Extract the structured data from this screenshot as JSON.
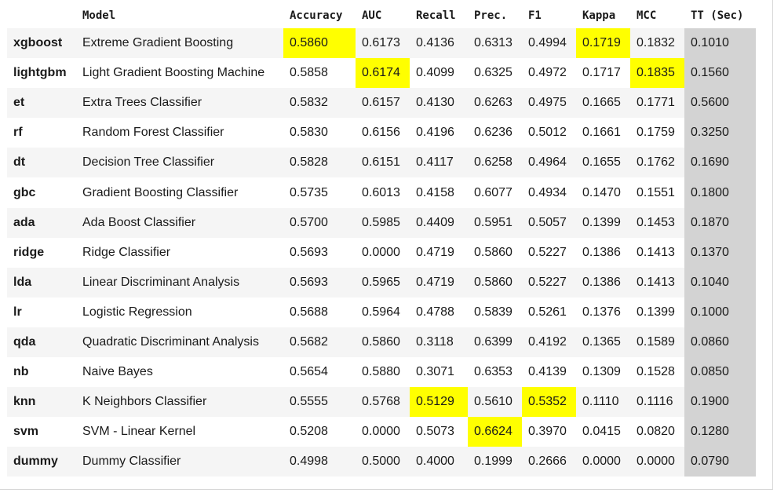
{
  "table": {
    "headers": [
      "",
      "Model",
      "Accuracy",
      "AUC",
      "Recall",
      "Prec.",
      "F1",
      "Kappa",
      "MCC",
      "TT (Sec)"
    ],
    "rows": [
      {
        "id": "xgboost",
        "model": "Extreme Gradient Boosting",
        "accuracy": "0.5860",
        "auc": "0.6173",
        "recall": "0.4136",
        "prec": "0.6313",
        "f1": "0.4994",
        "kappa": "0.1719",
        "mcc": "0.1832",
        "tt": "0.1010"
      },
      {
        "id": "lightgbm",
        "model": "Light Gradient Boosting Machine",
        "accuracy": "0.5858",
        "auc": "0.6174",
        "recall": "0.4099",
        "prec": "0.6325",
        "f1": "0.4972",
        "kappa": "0.1717",
        "mcc": "0.1835",
        "tt": "0.1560"
      },
      {
        "id": "et",
        "model": "Extra Trees Classifier",
        "accuracy": "0.5832",
        "auc": "0.6157",
        "recall": "0.4130",
        "prec": "0.6263",
        "f1": "0.4975",
        "kappa": "0.1665",
        "mcc": "0.1771",
        "tt": "0.5600"
      },
      {
        "id": "rf",
        "model": "Random Forest Classifier",
        "accuracy": "0.5830",
        "auc": "0.6156",
        "recall": "0.4196",
        "prec": "0.6236",
        "f1": "0.5012",
        "kappa": "0.1661",
        "mcc": "0.1759",
        "tt": "0.3250"
      },
      {
        "id": "dt",
        "model": "Decision Tree Classifier",
        "accuracy": "0.5828",
        "auc": "0.6151",
        "recall": "0.4117",
        "prec": "0.6258",
        "f1": "0.4964",
        "kappa": "0.1655",
        "mcc": "0.1762",
        "tt": "0.1690"
      },
      {
        "id": "gbc",
        "model": "Gradient Boosting Classifier",
        "accuracy": "0.5735",
        "auc": "0.6013",
        "recall": "0.4158",
        "prec": "0.6077",
        "f1": "0.4934",
        "kappa": "0.1470",
        "mcc": "0.1551",
        "tt": "0.1800"
      },
      {
        "id": "ada",
        "model": "Ada Boost Classifier",
        "accuracy": "0.5700",
        "auc": "0.5985",
        "recall": "0.4409",
        "prec": "0.5951",
        "f1": "0.5057",
        "kappa": "0.1399",
        "mcc": "0.1453",
        "tt": "0.1870"
      },
      {
        "id": "ridge",
        "model": "Ridge Classifier",
        "accuracy": "0.5693",
        "auc": "0.0000",
        "recall": "0.4719",
        "prec": "0.5860",
        "f1": "0.5227",
        "kappa": "0.1386",
        "mcc": "0.1413",
        "tt": "0.1370"
      },
      {
        "id": "lda",
        "model": "Linear Discriminant Analysis",
        "accuracy": "0.5693",
        "auc": "0.5965",
        "recall": "0.4719",
        "prec": "0.5860",
        "f1": "0.5227",
        "kappa": "0.1386",
        "mcc": "0.1413",
        "tt": "0.1040"
      },
      {
        "id": "lr",
        "model": "Logistic Regression",
        "accuracy": "0.5688",
        "auc": "0.5964",
        "recall": "0.4788",
        "prec": "0.5839",
        "f1": "0.5261",
        "kappa": "0.1376",
        "mcc": "0.1399",
        "tt": "0.1000"
      },
      {
        "id": "qda",
        "model": "Quadratic Discriminant Analysis",
        "accuracy": "0.5682",
        "auc": "0.5860",
        "recall": "0.3118",
        "prec": "0.6399",
        "f1": "0.4192",
        "kappa": "0.1365",
        "mcc": "0.1589",
        "tt": "0.0860"
      },
      {
        "id": "nb",
        "model": "Naive Bayes",
        "accuracy": "0.5654",
        "auc": "0.5880",
        "recall": "0.3071",
        "prec": "0.6353",
        "f1": "0.4139",
        "kappa": "0.1309",
        "mcc": "0.1528",
        "tt": "0.0850"
      },
      {
        "id": "knn",
        "model": "K Neighbors Classifier",
        "accuracy": "0.5555",
        "auc": "0.5768",
        "recall": "0.5129",
        "prec": "0.5610",
        "f1": "0.5352",
        "kappa": "0.1110",
        "mcc": "0.1116",
        "tt": "0.1900"
      },
      {
        "id": "svm",
        "model": "SVM - Linear Kernel",
        "accuracy": "0.5208",
        "auc": "0.0000",
        "recall": "0.5073",
        "prec": "0.6624",
        "f1": "0.3970",
        "kappa": "0.0415",
        "mcc": "0.0820",
        "tt": "0.1280"
      },
      {
        "id": "dummy",
        "model": "Dummy Classifier",
        "accuracy": "0.4998",
        "auc": "0.5000",
        "recall": "0.4000",
        "prec": "0.1999",
        "f1": "0.2666",
        "kappa": "0.0000",
        "mcc": "0.0000",
        "tt": "0.0790"
      }
    ]
  },
  "highlights": {
    "best_accuracy": "xgboost",
    "best_auc": "lightgbm",
    "best_recall": "knn",
    "best_prec": "svm",
    "best_f1": "knn",
    "best_kappa": "xgboost",
    "best_mcc": "lightgbm"
  },
  "colors": {
    "highlight": "#ffff00",
    "tt_column": "#d3d3d3",
    "row_stripe": "#f5f5f5"
  }
}
